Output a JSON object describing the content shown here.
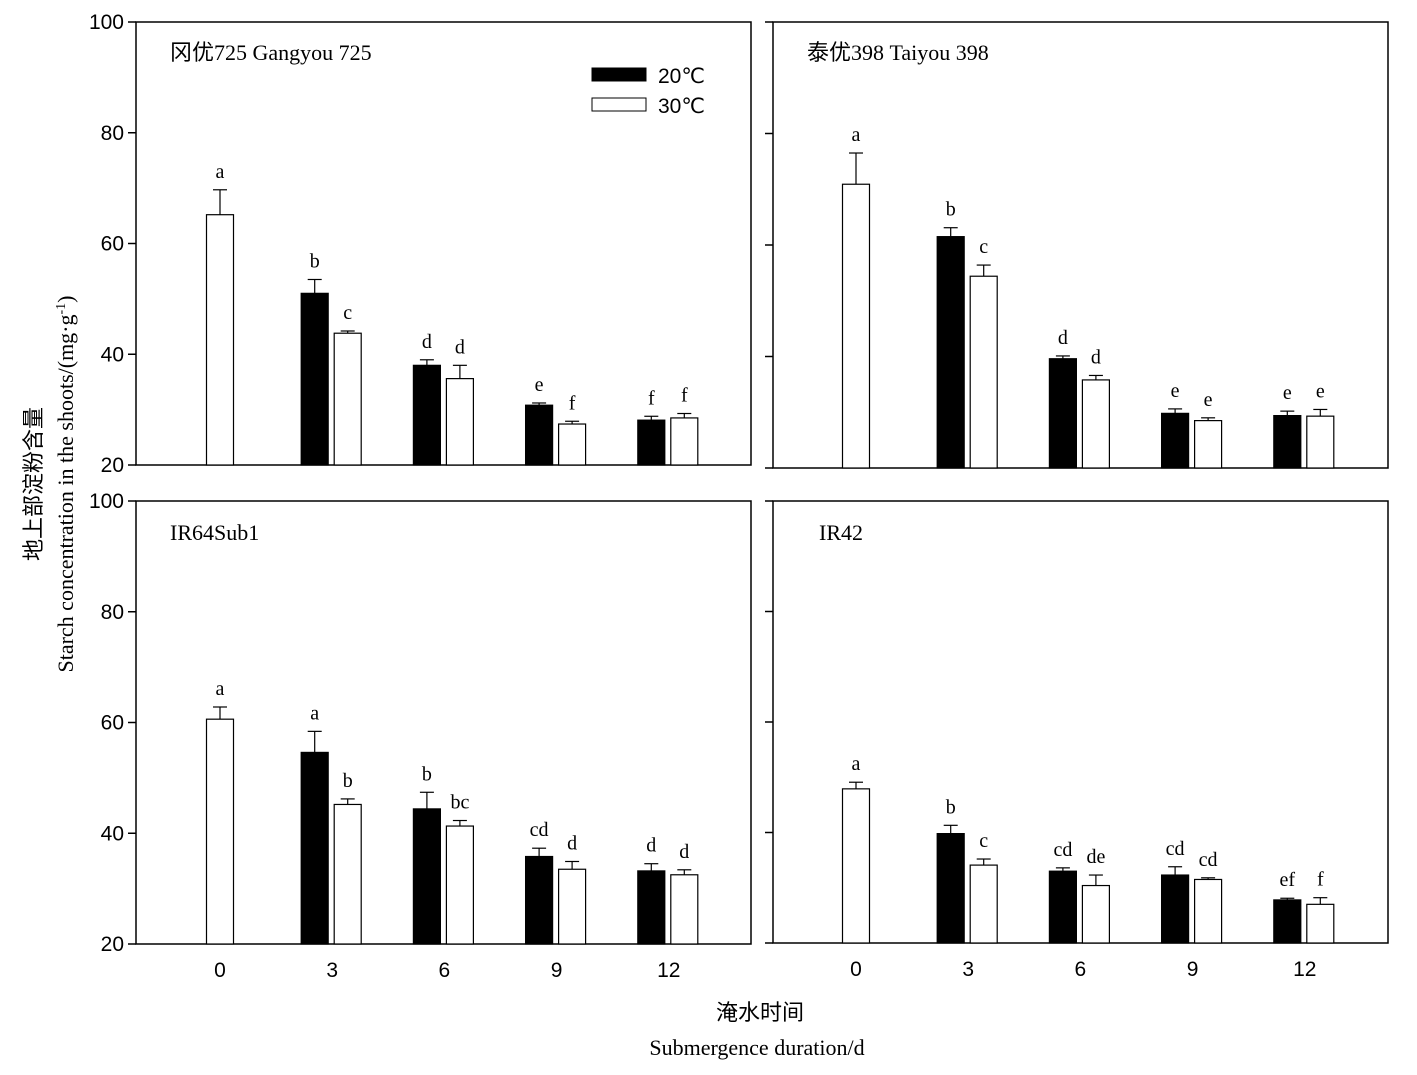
{
  "chart_data": {
    "type": "bar",
    "categories": [
      "0",
      "3",
      "6",
      "9",
      "12"
    ],
    "xlabel_cn": "淹水时间",
    "xlabel_en": "Submergence duration/d",
    "ylabel_cn": "地上部淀粉含量",
    "ylabel_en_prefix": "Starch concentration in the shoots/(mg·g",
    "ylabel_en_sup": "-1",
    "ylabel_en_suffix": ")",
    "ylim": [
      20,
      100
    ],
    "yticks": [
      "20",
      "40",
      "60",
      "80",
      "100"
    ],
    "legend": {
      "series_20": "20℃",
      "series_30": "30℃",
      "placement": "top-right of first panel"
    },
    "panels": [
      {
        "title": "冈优725  Gangyou 725",
        "series": [
          {
            "name": "20℃",
            "values": [
              null,
              51,
              38,
              30.8,
              28.1
            ],
            "errors": [
              null,
              2.5,
              1.0,
              0.4,
              0.7
            ],
            "labels": [
              "",
              "b",
              "d",
              "e",
              "f"
            ]
          },
          {
            "name": "30℃",
            "values": [
              65.2,
              43.8,
              35.6,
              27.4,
              28.5
            ],
            "errors": [
              4.5,
              0.4,
              2.4,
              0.5,
              0.8
            ],
            "labels": [
              "a",
              "c",
              "d",
              "f",
              "f"
            ]
          }
        ]
      },
      {
        "title": "泰优398  Taiyou 398",
        "series": [
          {
            "name": "20℃",
            "values": [
              null,
              61.5,
              39.6,
              29.8,
              29.4
            ],
            "errors": [
              null,
              1.6,
              0.5,
              0.8,
              0.8
            ],
            "labels": [
              "",
              "b",
              "d",
              "e",
              "e"
            ]
          },
          {
            "name": "30℃",
            "values": [
              70.9,
              54.4,
              35.8,
              28.5,
              29.3
            ],
            "errors": [
              5.6,
              2.0,
              0.8,
              0.5,
              1.2
            ],
            "labels": [
              "a",
              "c",
              "d",
              "e",
              "e"
            ]
          }
        ]
      },
      {
        "title": "IR64Sub1",
        "series": [
          {
            "name": "20℃",
            "values": [
              null,
              54.6,
              44.4,
              35.8,
              33.2
            ],
            "errors": [
              null,
              3.8,
              3.0,
              1.5,
              1.3
            ],
            "labels": [
              "",
              "a",
              "b",
              "cd",
              "d"
            ]
          },
          {
            "name": "30℃",
            "values": [
              60.6,
              45.2,
              41.3,
              33.5,
              32.5
            ],
            "errors": [
              2.2,
              1.0,
              1.0,
              1.4,
              0.9
            ],
            "labels": [
              "a",
              "b",
              "bc",
              "d",
              "d"
            ]
          }
        ]
      },
      {
        "title": "IR42",
        "series": [
          {
            "name": "20℃",
            "values": [
              null,
              39.8,
              33.0,
              32.3,
              27.8
            ],
            "errors": [
              null,
              1.5,
              0.6,
              1.5,
              0.3
            ],
            "labels": [
              "",
              "b",
              "cd",
              "cd",
              "ef"
            ]
          },
          {
            "name": "30℃",
            "values": [
              47.9,
              34.1,
              30.4,
              31.5,
              27.0
            ],
            "errors": [
              1.2,
              1.1,
              1.9,
              0.3,
              1.2
            ],
            "labels": [
              "a",
              "c",
              "de",
              "cd",
              "f"
            ]
          }
        ]
      }
    ]
  }
}
